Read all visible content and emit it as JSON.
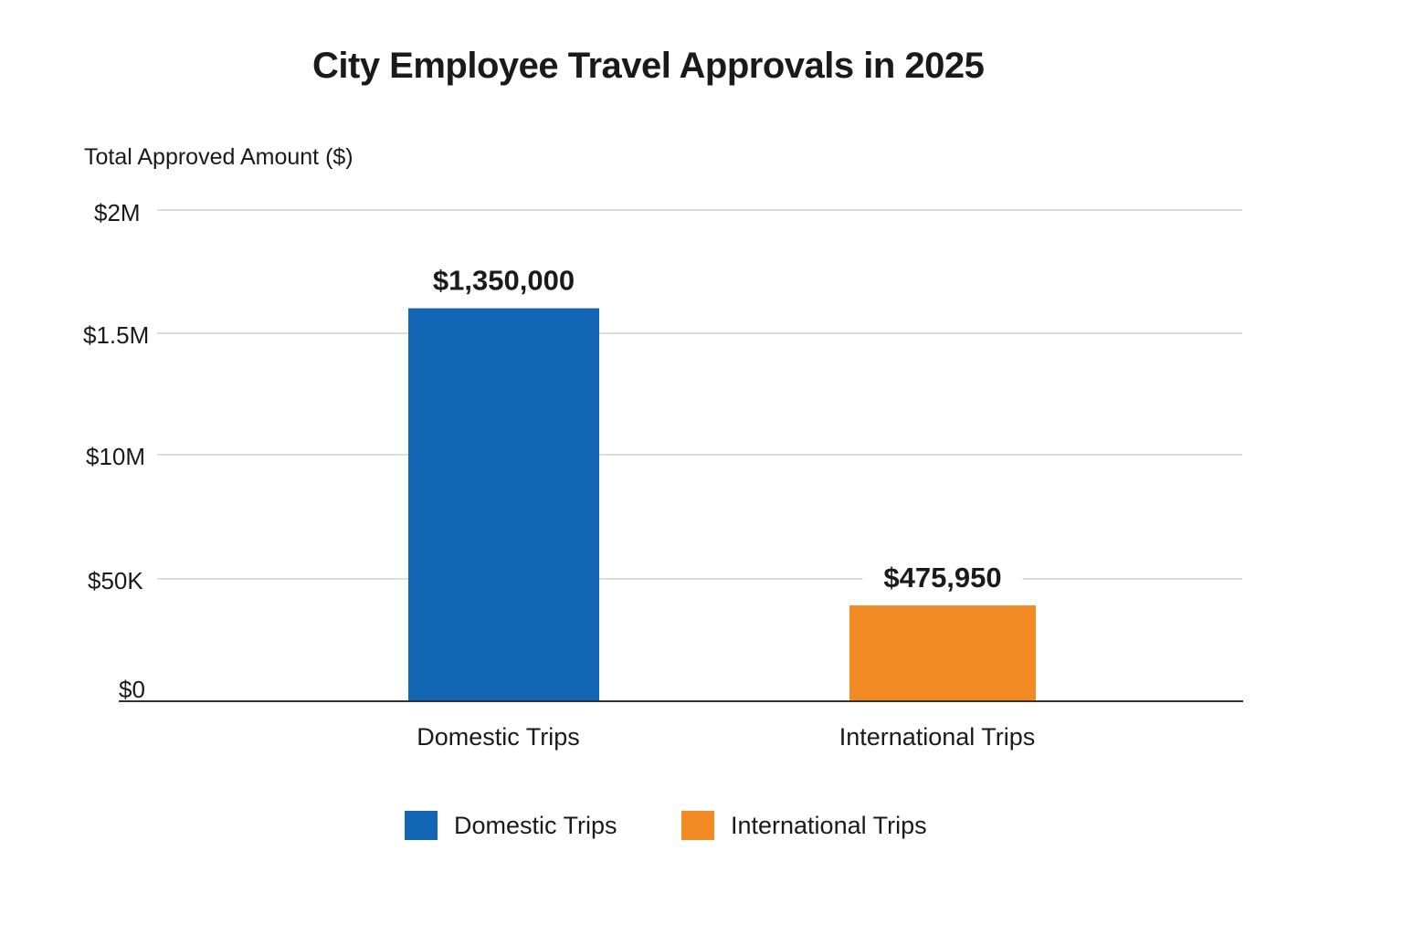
{
  "chart_data": {
    "type": "bar",
    "title": "City Employee Travel Approvals in 2025",
    "ylabel": "Total Approved Amount ($)",
    "xlabel": "",
    "categories": [
      "Domestic Trips",
      "International Trips"
    ],
    "values": [
      1350000,
      475950
    ],
    "value_labels": [
      "$1,350,000",
      "$475,950"
    ],
    "colors": [
      "#1266b3",
      "#f18a22"
    ],
    "y_ticks": [
      {
        "label": "$2M"
      },
      {
        "label": "$1.5M"
      },
      {
        "label": "$10M"
      },
      {
        "label": "$50K"
      },
      {
        "label": "$0"
      }
    ],
    "bar_levels": [
      0.8,
      0.195
    ],
    "grid": true,
    "legend": {
      "position": "bottom-center",
      "entries": [
        {
          "label": "Domestic Trips",
          "color": "#1266b3"
        },
        {
          "label": "International Trips",
          "color": "#f18a22"
        }
      ]
    }
  }
}
